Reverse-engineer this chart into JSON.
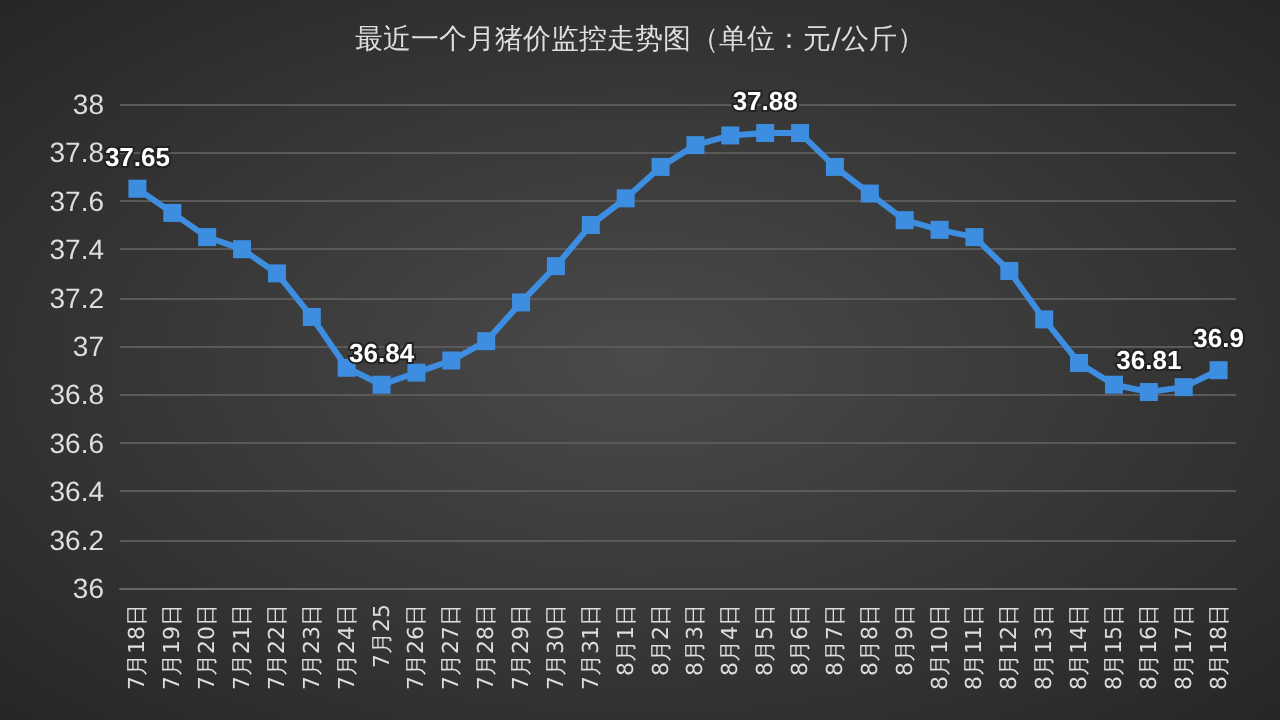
{
  "chart_data": {
    "type": "line",
    "title": "最近一个月猪价监控走势图（单位：元/公斤）",
    "categories": [
      "7月18日",
      "7月19日",
      "7月20日",
      "7月21日",
      "7月22日",
      "7月23日",
      "7月24日",
      "7月25",
      "7月26日",
      "7月27日",
      "7月28日",
      "7月29日",
      "7月30日",
      "7月31日",
      "8月1日",
      "8月2日",
      "8月3日",
      "8月4日",
      "8月5日",
      "8月6日",
      "8月7日",
      "8月8日",
      "8月9日",
      "8月10日",
      "8月11日",
      "8月12日",
      "8月13日",
      "8月14日",
      "8月15日",
      "8月16日",
      "8月17日",
      "8月18日"
    ],
    "series": [
      {
        "color": "#3d8ee0",
        "values": [
          37.65,
          37.55,
          37.45,
          37.4,
          37.3,
          37.12,
          36.91,
          36.84,
          36.89,
          36.94,
          37.02,
          37.18,
          37.33,
          37.5,
          37.61,
          37.74,
          37.83,
          37.87,
          37.88,
          37.88,
          37.74,
          37.63,
          37.52,
          37.48,
          37.45,
          37.31,
          37.11,
          36.93,
          36.84,
          36.81,
          36.83,
          36.9
        ],
        "value_labels": [
          "37.65",
          null,
          null,
          null,
          null,
          null,
          null,
          "36.84",
          null,
          null,
          null,
          null,
          null,
          null,
          null,
          null,
          null,
          null,
          "37.88",
          null,
          null,
          null,
          null,
          null,
          null,
          null,
          null,
          null,
          null,
          "36.81",
          null,
          "36.9"
        ]
      }
    ],
    "ylim": [
      36,
      38
    ],
    "yticks": [
      36,
      36.2,
      36.4,
      36.6,
      36.8,
      37,
      37.2,
      37.4,
      37.6,
      37.8,
      38
    ],
    "grid": "y",
    "marker": "square",
    "line_style": "solid"
  }
}
